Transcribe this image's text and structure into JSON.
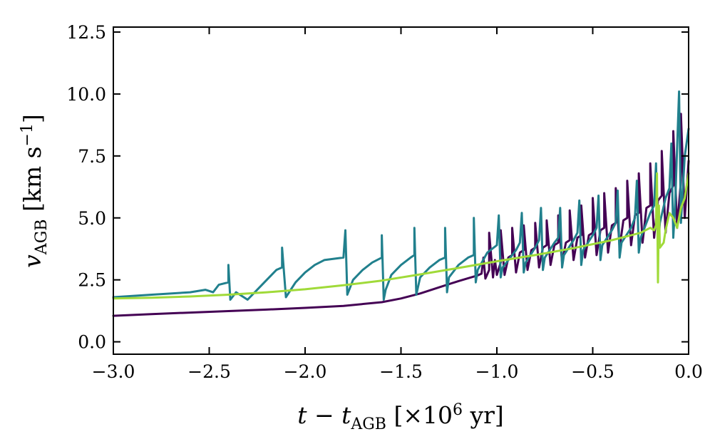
{
  "chart_data": {
    "type": "line",
    "title": "",
    "xlabel": {
      "main": "t − t",
      "sub": "AGB",
      "bracket_open": "[×10",
      "sup": "6",
      "rest": " yr]"
    },
    "ylabel": {
      "main": "v",
      "sub": "AGB",
      "unit_open": "[km s",
      "sup": "−1",
      "unit_close": "]"
    },
    "xlim": [
      -3.0,
      0.0
    ],
    "ylim": [
      -0.5,
      12.7
    ],
    "xticks": [
      -3.0,
      -2.5,
      -2.0,
      -1.5,
      -1.0,
      -0.5,
      0.0
    ],
    "xtick_labels": [
      "−3.0",
      "−2.5",
      "−2.0",
      "−1.5",
      "−1.0",
      "−0.5",
      "0.0"
    ],
    "yticks": [
      0.0,
      2.5,
      5.0,
      7.5,
      10.0,
      12.5
    ],
    "ytick_labels": [
      "0.0",
      "2.5",
      "5.0",
      "7.5",
      "10.0",
      "12.5"
    ],
    "grid": false,
    "legend": "none",
    "series": [
      {
        "name": "dark purple",
        "color": "#440154",
        "x": [
          -3.0,
          -2.8,
          -2.6,
          -2.4,
          -2.2,
          -2.0,
          -1.8,
          -1.6,
          -1.5,
          -1.4,
          -1.3,
          -1.2,
          -1.1,
          -1.08,
          -1.07,
          -1.06,
          -1.04,
          -1.04,
          -1.02,
          -1.01,
          -1.0,
          -0.98,
          -0.98,
          -0.96,
          -0.94,
          -0.92,
          -0.92,
          -0.9,
          -0.88,
          -0.86,
          -0.86,
          -0.84,
          -0.82,
          -0.8,
          -0.8,
          -0.78,
          -0.76,
          -0.74,
          -0.74,
          -0.72,
          -0.7,
          -0.68,
          -0.68,
          -0.66,
          -0.64,
          -0.62,
          -0.62,
          -0.6,
          -0.58,
          -0.56,
          -0.56,
          -0.54,
          -0.52,
          -0.5,
          -0.5,
          -0.48,
          -0.46,
          -0.44,
          -0.44,
          -0.42,
          -0.4,
          -0.38,
          -0.38,
          -0.36,
          -0.34,
          -0.32,
          -0.32,
          -0.3,
          -0.28,
          -0.26,
          -0.26,
          -0.24,
          -0.22,
          -0.2,
          -0.2,
          -0.18,
          -0.16,
          -0.14,
          -0.14,
          -0.12,
          -0.1,
          -0.08,
          -0.08,
          -0.06,
          -0.04,
          -0.04,
          -0.02,
          0.0
        ],
        "y": [
          1.05,
          1.12,
          1.18,
          1.24,
          1.3,
          1.37,
          1.45,
          1.6,
          1.75,
          1.95,
          2.2,
          2.45,
          2.68,
          2.75,
          3.4,
          2.55,
          2.9,
          4.4,
          2.6,
          3.3,
          2.7,
          3.2,
          4.5,
          2.7,
          3.4,
          3.5,
          4.6,
          2.8,
          3.6,
          3.7,
          4.7,
          2.9,
          3.7,
          3.8,
          4.8,
          3.0,
          3.8,
          3.9,
          4.9,
          3.1,
          3.9,
          4.0,
          5.1,
          3.2,
          4.0,
          4.1,
          5.3,
          3.3,
          4.2,
          4.3,
          5.5,
          3.4,
          4.3,
          4.4,
          5.8,
          3.5,
          4.5,
          4.6,
          6.0,
          3.6,
          4.7,
          4.8,
          6.2,
          3.8,
          4.9,
          5.0,
          6.5,
          3.9,
          5.1,
          5.2,
          6.8,
          4.0,
          5.4,
          5.5,
          7.2,
          4.2,
          5.7,
          5.9,
          7.7,
          4.4,
          6.0,
          6.3,
          8.5,
          4.6,
          6.5,
          9.2,
          5.0,
          7.3
        ]
      },
      {
        "name": "teal",
        "color": "#21808d",
        "x": [
          -3.0,
          -2.8,
          -2.6,
          -2.52,
          -2.48,
          -2.45,
          -2.4,
          -2.4,
          -2.39,
          -2.36,
          -2.3,
          -2.25,
          -2.2,
          -2.15,
          -2.12,
          -2.12,
          -2.1,
          -2.05,
          -2.0,
          -1.95,
          -1.9,
          -1.8,
          -1.79,
          -1.78,
          -1.75,
          -1.7,
          -1.65,
          -1.6,
          -1.6,
          -1.59,
          -1.58,
          -1.55,
          -1.5,
          -1.45,
          -1.43,
          -1.43,
          -1.42,
          -1.4,
          -1.35,
          -1.3,
          -1.27,
          -1.27,
          -1.26,
          -1.25,
          -1.2,
          -1.15,
          -1.12,
          -1.12,
          -1.11,
          -1.1,
          -1.05,
          -1.0,
          -0.99,
          -0.98,
          -0.97,
          -0.9,
          -0.88,
          -0.87,
          -0.86,
          -0.85,
          -0.8,
          -0.78,
          -0.77,
          -0.76,
          -0.75,
          -0.7,
          -0.68,
          -0.67,
          -0.66,
          -0.65,
          -0.6,
          -0.58,
          -0.57,
          -0.56,
          -0.55,
          -0.5,
          -0.48,
          -0.47,
          -0.46,
          -0.45,
          -0.4,
          -0.38,
          -0.37,
          -0.36,
          -0.35,
          -0.3,
          -0.28,
          -0.27,
          -0.26,
          -0.25,
          -0.2,
          -0.18,
          -0.17,
          -0.16,
          -0.15,
          -0.12,
          -0.1,
          -0.09,
          -0.08,
          -0.07,
          -0.05,
          -0.04,
          -0.03,
          -0.02,
          0.0
        ],
        "y": [
          1.8,
          1.9,
          2.0,
          2.1,
          2.0,
          2.3,
          2.4,
          3.1,
          1.7,
          2.0,
          1.7,
          2.1,
          2.5,
          2.9,
          3.0,
          3.8,
          1.8,
          2.4,
          2.8,
          3.1,
          3.3,
          3.4,
          4.5,
          1.9,
          2.5,
          2.9,
          3.2,
          3.4,
          4.3,
          1.7,
          2.1,
          2.7,
          3.1,
          3.4,
          3.5,
          4.6,
          1.9,
          2.6,
          3.0,
          3.3,
          3.4,
          4.6,
          2.0,
          2.6,
          3.1,
          3.4,
          3.5,
          5.0,
          2.4,
          2.9,
          3.6,
          3.9,
          5.1,
          2.6,
          3.0,
          3.7,
          4.0,
          5.2,
          2.8,
          3.2,
          3.8,
          4.1,
          5.4,
          2.9,
          3.4,
          4.0,
          4.2,
          5.4,
          3.0,
          3.5,
          4.1,
          4.4,
          5.7,
          3.1,
          3.7,
          4.3,
          4.6,
          5.9,
          3.3,
          3.9,
          4.5,
          4.8,
          6.1,
          3.4,
          4.0,
          4.6,
          5.0,
          6.5,
          3.6,
          4.2,
          5.2,
          5.5,
          7.2,
          3.8,
          4.8,
          5.8,
          6.2,
          8.0,
          4.2,
          5.6,
          10.1,
          4.8,
          6.2,
          7.5,
          8.6
        ]
      },
      {
        "name": "light green",
        "color": "#a0da39",
        "x": [
          -3.0,
          -2.8,
          -2.6,
          -2.4,
          -2.2,
          -2.0,
          -1.8,
          -1.6,
          -1.4,
          -1.2,
          -1.0,
          -0.8,
          -0.6,
          -0.4,
          -0.25,
          -0.2,
          -0.18,
          -0.17,
          -0.165,
          -0.16,
          -0.155,
          -0.15,
          -0.13,
          -0.12,
          -0.1,
          -0.08,
          -0.06,
          -0.04,
          -0.02,
          0.0
        ],
        "y": [
          1.75,
          1.78,
          1.83,
          1.9,
          2.0,
          2.12,
          2.28,
          2.47,
          2.72,
          2.98,
          3.25,
          3.5,
          3.78,
          4.1,
          4.4,
          4.6,
          4.5,
          4.7,
          6.8,
          2.4,
          5.5,
          3.8,
          4.0,
          4.5,
          5.2,
          5.0,
          4.6,
          5.4,
          5.8,
          6.8
        ]
      }
    ]
  }
}
